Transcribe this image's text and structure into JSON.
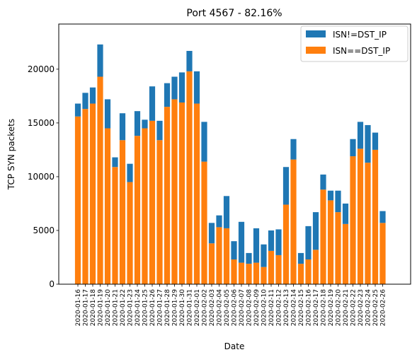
{
  "chart_data": {
    "type": "bar",
    "stacked": true,
    "title": "Port 4567 - 82.16%",
    "xlabel": "Date",
    "ylabel": "TCP SYN packets",
    "ylim": [
      0,
      24200
    ],
    "yticks": [
      0,
      5000,
      10000,
      15000,
      20000
    ],
    "legend_position": "top-right",
    "grid": false,
    "categories": [
      "2020-01-16",
      "2020-01-17",
      "2020-01-18",
      "2020-01-19",
      "2020-01-20",
      "2020-01-21",
      "2020-01-22",
      "2020-01-23",
      "2020-01-24",
      "2020-01-25",
      "2020-01-26",
      "2020-01-27",
      "2020-01-28",
      "2020-01-29",
      "2020-01-30",
      "2020-01-31",
      "2020-02-01",
      "2020-02-02",
      "2020-02-03",
      "2020-02-04",
      "2020-02-05",
      "2020-02-06",
      "2020-02-07",
      "2020-02-08",
      "2020-02-09",
      "2020-02-10",
      "2020-02-11",
      "2020-02-12",
      "2020-02-13",
      "2020-02-14",
      "2020-02-15",
      "2020-02-16",
      "2020-02-17",
      "2020-02-18",
      "2020-02-19",
      "2020-02-20",
      "2020-02-21",
      "2020-02-22",
      "2020-02-23",
      "2020-02-24",
      "2020-02-25",
      "2020-02-26"
    ],
    "series": [
      {
        "name": "ISN==DST_IP",
        "color": "#ff7f0e",
        "values": [
          15600,
          16300,
          16800,
          19300,
          14500,
          10900,
          13400,
          9500,
          13800,
          14500,
          15200,
          13400,
          16500,
          17200,
          16900,
          19800,
          16800,
          11400,
          3800,
          5300,
          5200,
          2300,
          2000,
          1900,
          2000,
          1600,
          3100,
          2700,
          7400,
          11600,
          1900,
          2300,
          3200,
          8800,
          7800,
          6700,
          5600,
          11900,
          12600,
          11300,
          12500,
          5700
        ]
      },
      {
        "name": "ISN!=DST_IP",
        "color": "#1f77b4",
        "values": [
          1200,
          1500,
          1500,
          3000,
          2700,
          900,
          2500,
          1700,
          2300,
          800,
          3200,
          1800,
          2200,
          2100,
          2800,
          1900,
          3000,
          3700,
          1900,
          1100,
          3000,
          1700,
          3800,
          1000,
          3200,
          2100,
          1900,
          2400,
          3500,
          1900,
          1000,
          3100,
          3500,
          1400,
          900,
          2000,
          1900,
          1600,
          2500,
          3500,
          1600,
          1100
        ]
      }
    ]
  }
}
